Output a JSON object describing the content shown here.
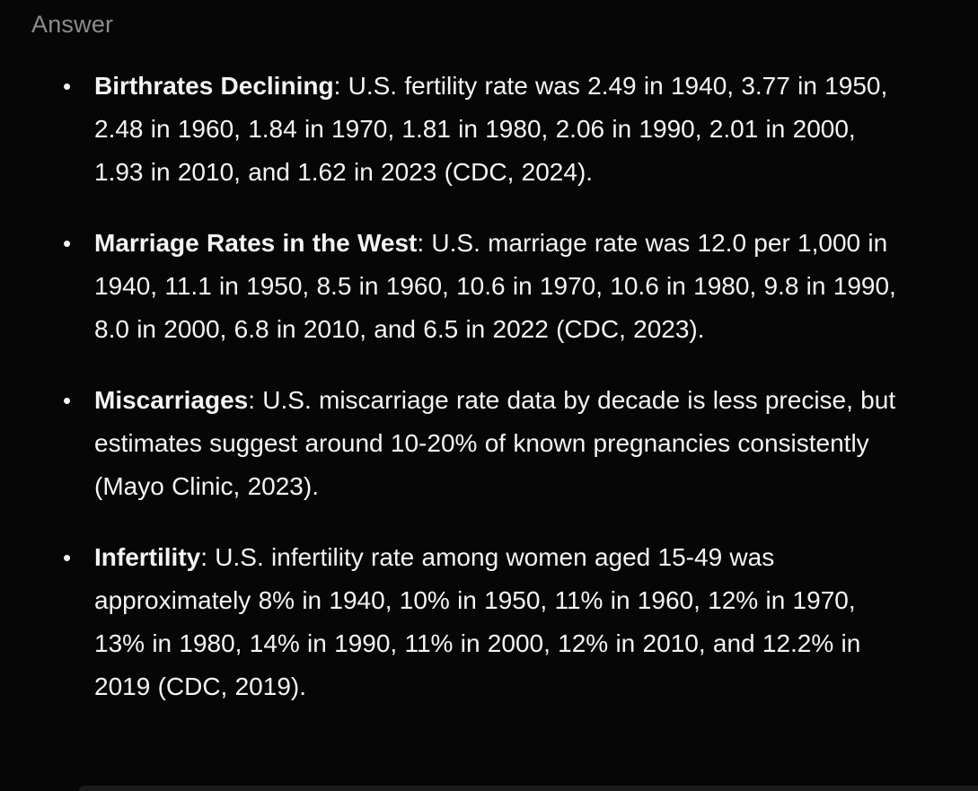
{
  "answer": {
    "label": "Answer",
    "bullet_marker": "•",
    "bullets": [
      {
        "term": "Birthrates Declining",
        "text": ": U.S. fertility rate was 2.49 in 1940, 3.77 in 1950, 2.48 in 1960, 1.84 in 1970, 1.81 in 1980, 2.06 in 1990, 2.01 in 2000, 1.93 in 2010, and 1.62 in 2023 (CDC, 2024)."
      },
      {
        "term": "Marriage Rates in the West",
        "text": ": U.S. marriage rate was 12.0 per 1,000 in 1940, 11.1 in 1950, 8.5 in 1960, 10.6 in 1970, 10.6 in 1980, 9.8 in 1990, 8.0 in 2000, 6.8 in 2010, and 6.5 in 2022 (CDC, 2023)."
      },
      {
        "term": "Miscarriages",
        "text": ": U.S. miscarriage rate data by decade is less precise, but estimates suggest around 10-20% of known pregnancies consistently (Mayo Clinic, 2023)."
      },
      {
        "term": "Infertility",
        "text": ": U.S. infertility rate among women aged 15-49 was approximately 8% in 1940, 10% in 1950, 11% in 1960, 12% in 1970, 13% in 1980, 14% in 1990, 11% in 2000, 12% in 2010, and 12.2% in 2019 (CDC, 2019)."
      }
    ]
  },
  "colors": {
    "bg": "#060606",
    "text": "#f4f4f4",
    "muted": "#8b8b90",
    "band": "#1b1b1d"
  }
}
